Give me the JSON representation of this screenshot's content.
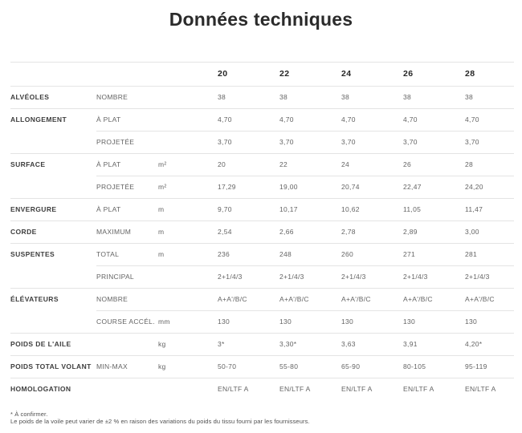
{
  "title": "Données techniques",
  "table": {
    "size_headers": [
      "20",
      "22",
      "24",
      "26",
      "28"
    ],
    "rows": [
      {
        "group": "ALVÉOLES",
        "param": "NOMBRE",
        "unit": "",
        "values": [
          "38",
          "38",
          "38",
          "38",
          "38"
        ],
        "rule": "full"
      },
      {
        "group": "ALLONGEMENT",
        "param": "À PLAT",
        "unit": "",
        "values": [
          "4,70",
          "4,70",
          "4,70",
          "4,70",
          "4,70"
        ],
        "rule": "full"
      },
      {
        "group": "",
        "param": "PROJETÉE",
        "unit": "",
        "values": [
          "3,70",
          "3,70",
          "3,70",
          "3,70",
          "3,70"
        ],
        "rule": "indent"
      },
      {
        "group": "SURFACE",
        "param": "À PLAT",
        "unit": "m²",
        "values": [
          "20",
          "22",
          "24",
          "26",
          "28"
        ],
        "rule": "full"
      },
      {
        "group": "",
        "param": "PROJETÉE",
        "unit": "m²",
        "values": [
          "17,29",
          "19,00",
          "20,74",
          "22,47",
          "24,20"
        ],
        "rule": "indent"
      },
      {
        "group": "ENVERGURE",
        "param": "À PLAT",
        "unit": "m",
        "values": [
          "9,70",
          "10,17",
          "10,62",
          "11,05",
          "11,47"
        ],
        "rule": "full"
      },
      {
        "group": "CORDE",
        "param": "MAXIMUM",
        "unit": "m",
        "values": [
          "2,54",
          "2,66",
          "2,78",
          "2,89",
          "3,00"
        ],
        "rule": "full"
      },
      {
        "group": "SUSPENTES",
        "param": "TOTAL",
        "unit": "m",
        "values": [
          "236",
          "248",
          "260",
          "271",
          "281"
        ],
        "rule": "full"
      },
      {
        "group": "",
        "param": "PRINCIPAL",
        "unit": "",
        "values": [
          "2+1/4/3",
          "2+1/4/3",
          "2+1/4/3",
          "2+1/4/3",
          "2+1/4/3"
        ],
        "rule": "indent"
      },
      {
        "group": "ÉLÉVATEURS",
        "param": "NOMBRE",
        "unit": "",
        "values": [
          "A+A'/B/C",
          "A+A'/B/C",
          "A+A'/B/C",
          "A+A'/B/C",
          "A+A'/B/C"
        ],
        "rule": "full"
      },
      {
        "group": "",
        "param": "COURSE ACCÉL.",
        "unit": "mm",
        "values": [
          "130",
          "130",
          "130",
          "130",
          "130"
        ],
        "rule": "indent"
      },
      {
        "group": "POIDS DE L'AILE",
        "param": "",
        "unit": "kg",
        "values": [
          "3*",
          "3,30*",
          "3,63",
          "3,91",
          "4,20*"
        ],
        "rule": "full"
      },
      {
        "group": "POIDS TOTAL VOLANT",
        "param": "MIN-MAX",
        "unit": "kg",
        "values": [
          "50-70",
          "55-80",
          "65-90",
          "80-105",
          "95-119"
        ],
        "rule": "full"
      },
      {
        "group": "HOMOLOGATION",
        "param": "",
        "unit": "",
        "values": [
          "EN/LTF A",
          "EN/LTF A",
          "EN/LTF A",
          "EN/LTF A",
          "EN/LTF A"
        ],
        "rule": "full"
      }
    ]
  },
  "footnotes": [
    "* À confirmer.",
    "Le poids de la voile peut varier de ±2 % en raison des variations du poids du tissu fourni par les fournisseurs."
  ],
  "colors": {
    "bg": "#ffffff",
    "title": "#2b2b2b",
    "group": "#3d3d3d",
    "muted": "#646464",
    "header": "#262626",
    "rule": "#e4e4e4",
    "footnote": "#4f4f4f"
  }
}
